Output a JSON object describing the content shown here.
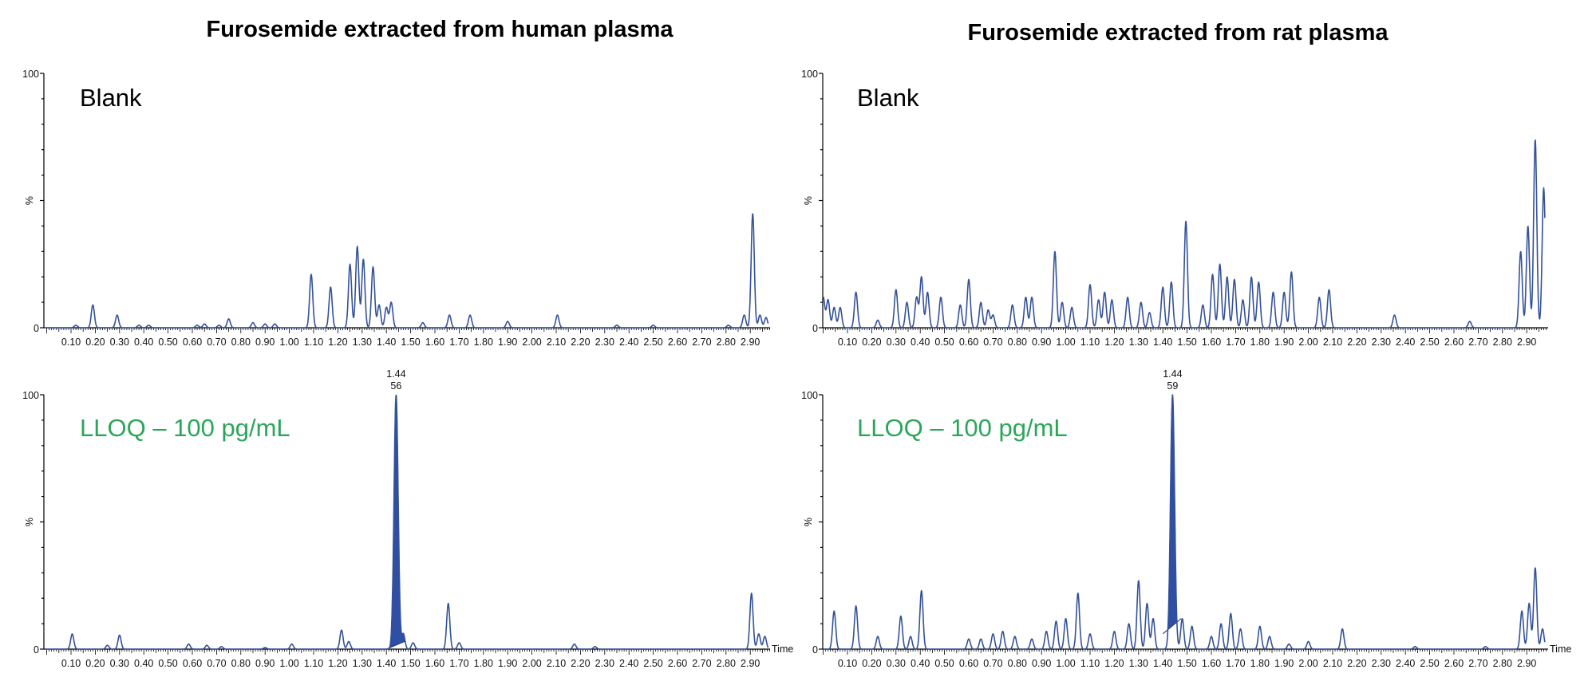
{
  "titles": {
    "left": "Furosemide extracted from human plasma",
    "right": "Furosemide extracted from rat plasma"
  },
  "axis_text": {
    "y_label": "%",
    "y_min": "0",
    "y_max": "100",
    "x_label": "Time"
  },
  "colors": {
    "trace": "#34519a",
    "peak_fill": "#2e4fa3",
    "lloq_label": "#2aa65a"
  },
  "chart_data": [
    {
      "type": "line",
      "panel": "human-blank",
      "label": "Blank",
      "xlabel": "Time",
      "ylabel": "%",
      "ylim": [
        0,
        100
      ],
      "xlim": [
        0.0,
        2.98
      ],
      "x_ticks": [
        "0.10",
        "0.20",
        "0.30",
        "0.40",
        "0.50",
        "0.60",
        "0.70",
        "0.80",
        "0.90",
        "1.00",
        "1.10",
        "1.20",
        "1.30",
        "1.40",
        "1.50",
        "1.60",
        "1.70",
        "1.80",
        "1.90",
        "2.00",
        "2.10",
        "2.20",
        "2.30",
        "2.40",
        "2.50",
        "2.60",
        "2.70",
        "2.80",
        "2.90"
      ],
      "peaks": [
        [
          0.12,
          1
        ],
        [
          0.19,
          9
        ],
        [
          0.29,
          5
        ],
        [
          0.38,
          1
        ],
        [
          0.42,
          1
        ],
        [
          0.62,
          1
        ],
        [
          0.65,
          1.5
        ],
        [
          0.71,
          1
        ],
        [
          0.75,
          3.5
        ],
        [
          0.85,
          2
        ],
        [
          0.9,
          1.5
        ],
        [
          0.94,
          1.5
        ],
        [
          1.09,
          21
        ],
        [
          1.17,
          16
        ],
        [
          1.25,
          25
        ],
        [
          1.28,
          32
        ],
        [
          1.305,
          27
        ],
        [
          1.345,
          24
        ],
        [
          1.37,
          9
        ],
        [
          1.4,
          8
        ],
        [
          1.42,
          10
        ],
        [
          1.55,
          2
        ],
        [
          1.66,
          5
        ],
        [
          1.745,
          5
        ],
        [
          1.9,
          2.5
        ],
        [
          2.105,
          5
        ],
        [
          2.35,
          1
        ],
        [
          2.5,
          1
        ],
        [
          2.81,
          1
        ],
        [
          2.875,
          5
        ],
        [
          2.91,
          45
        ],
        [
          2.94,
          5
        ],
        [
          2.965,
          4
        ]
      ]
    },
    {
      "type": "line",
      "panel": "human-lloq",
      "label": "LLOQ – 100 pg/mL",
      "xlabel": "Time",
      "ylabel": "%",
      "ylim": [
        0,
        100
      ],
      "xlim": [
        0.0,
        2.98
      ],
      "x_ticks": [
        "0.10",
        "0.20",
        "0.30",
        "0.40",
        "0.50",
        "0.60",
        "0.70",
        "0.80",
        "0.90",
        "1.00",
        "1.10",
        "1.20",
        "1.30",
        "1.40",
        "1.50",
        "1.60",
        "1.70",
        "1.80",
        "1.90",
        "2.00",
        "2.10",
        "2.20",
        "2.30",
        "2.40",
        "2.50",
        "2.60",
        "2.70",
        "2.80",
        "2.90"
      ],
      "peaks": [
        [
          0.105,
          6
        ],
        [
          0.25,
          1.5
        ],
        [
          0.3,
          5.5
        ],
        [
          0.585,
          2
        ],
        [
          0.66,
          1.5
        ],
        [
          0.72,
          1
        ],
        [
          0.9,
          0.6
        ],
        [
          1.01,
          2
        ],
        [
          1.215,
          7.5
        ],
        [
          1.245,
          3
        ],
        [
          1.44,
          100
        ],
        [
          1.47,
          6
        ],
        [
          1.51,
          2.5
        ],
        [
          1.655,
          18
        ],
        [
          1.7,
          2.5
        ],
        [
          2.175,
          2
        ],
        [
          2.26,
          1
        ],
        [
          2.905,
          22
        ],
        [
          2.935,
          6
        ],
        [
          2.96,
          5
        ]
      ],
      "peak_annotation": {
        "rt": "1.44",
        "area": "56"
      },
      "integrated_peak": {
        "start": 1.4,
        "end": 1.475,
        "baseline": [
          0,
          3
        ]
      }
    },
    {
      "type": "line",
      "panel": "rat-blank",
      "label": "Blank",
      "xlabel": "Time",
      "ylabel": "%",
      "ylim": [
        0,
        100
      ],
      "xlim": [
        0.0,
        2.98
      ],
      "x_ticks": [
        "0.10",
        "0.20",
        "0.30",
        "0.40",
        "0.50",
        "0.60",
        "0.70",
        "0.80",
        "0.90",
        "1.00",
        "1.10",
        "1.20",
        "1.30",
        "1.40",
        "1.50",
        "1.60",
        "1.70",
        "1.80",
        "1.90",
        "2.00",
        "2.10",
        "2.20",
        "2.30",
        "2.40",
        "2.50",
        "2.60",
        "2.70",
        "2.80",
        "2.90"
      ],
      "peaks": [
        [
          0.0,
          12
        ],
        [
          0.02,
          11
        ],
        [
          0.045,
          8
        ],
        [
          0.07,
          8
        ],
        [
          0.135,
          14
        ],
        [
          0.225,
          3
        ],
        [
          0.3,
          15
        ],
        [
          0.345,
          10
        ],
        [
          0.385,
          12
        ],
        [
          0.405,
          20
        ],
        [
          0.43,
          14
        ],
        [
          0.485,
          12
        ],
        [
          0.565,
          9
        ],
        [
          0.6,
          19
        ],
        [
          0.65,
          10
        ],
        [
          0.68,
          7
        ],
        [
          0.7,
          5
        ],
        [
          0.78,
          9
        ],
        [
          0.835,
          12
        ],
        [
          0.86,
          12
        ],
        [
          0.955,
          30
        ],
        [
          0.985,
          10
        ],
        [
          1.025,
          8
        ],
        [
          1.1,
          17
        ],
        [
          1.135,
          11
        ],
        [
          1.16,
          14
        ],
        [
          1.19,
          11
        ],
        [
          1.255,
          12
        ],
        [
          1.31,
          10
        ],
        [
          1.345,
          6
        ],
        [
          1.4,
          16
        ],
        [
          1.435,
          18
        ],
        [
          1.495,
          42
        ],
        [
          1.565,
          9
        ],
        [
          1.605,
          21
        ],
        [
          1.635,
          25
        ],
        [
          1.665,
          20
        ],
        [
          1.695,
          19
        ],
        [
          1.73,
          11
        ],
        [
          1.765,
          20
        ],
        [
          1.795,
          18
        ],
        [
          1.855,
          14
        ],
        [
          1.9,
          14
        ],
        [
          1.93,
          22
        ],
        [
          2.045,
          12
        ],
        [
          2.085,
          15
        ],
        [
          2.355,
          5
        ],
        [
          2.665,
          2.5
        ],
        [
          2.875,
          30
        ],
        [
          2.905,
          40
        ],
        [
          2.935,
          74
        ],
        [
          2.97,
          55
        ]
      ]
    },
    {
      "type": "line",
      "panel": "rat-lloq",
      "label": "LLOQ – 100 pg/mL",
      "xlabel": "Time",
      "ylabel": "%",
      "ylim": [
        0,
        100
      ],
      "xlim": [
        0.0,
        2.98
      ],
      "x_ticks": [
        "0.10",
        "0.20",
        "0.30",
        "0.40",
        "0.50",
        "0.60",
        "0.70",
        "0.80",
        "0.90",
        "1.00",
        "1.10",
        "1.20",
        "1.30",
        "1.40",
        "1.50",
        "1.60",
        "1.70",
        "1.80",
        "1.90",
        "2.00",
        "2.10",
        "2.20",
        "2.30",
        "2.40",
        "2.50",
        "2.60",
        "2.70",
        "2.80",
        "2.90"
      ],
      "peaks": [
        [
          0.045,
          15
        ],
        [
          0.135,
          17
        ],
        [
          0.225,
          5
        ],
        [
          0.32,
          13
        ],
        [
          0.36,
          5
        ],
        [
          0.405,
          23
        ],
        [
          0.6,
          4
        ],
        [
          0.65,
          4
        ],
        [
          0.7,
          6
        ],
        [
          0.74,
          7
        ],
        [
          0.79,
          5
        ],
        [
          0.86,
          4
        ],
        [
          0.92,
          7
        ],
        [
          0.96,
          11
        ],
        [
          1.0,
          12
        ],
        [
          1.05,
          22
        ],
        [
          1.1,
          6
        ],
        [
          1.2,
          7
        ],
        [
          1.26,
          10
        ],
        [
          1.3,
          27
        ],
        [
          1.335,
          18
        ],
        [
          1.36,
          12
        ],
        [
          1.44,
          100
        ],
        [
          1.48,
          12
        ],
        [
          1.52,
          9
        ],
        [
          1.6,
          5
        ],
        [
          1.64,
          10
        ],
        [
          1.68,
          14
        ],
        [
          1.72,
          8
        ],
        [
          1.8,
          9
        ],
        [
          1.84,
          5
        ],
        [
          1.92,
          2
        ],
        [
          2.0,
          3
        ],
        [
          2.14,
          8
        ],
        [
          2.44,
          1
        ],
        [
          2.73,
          1
        ],
        [
          2.88,
          15
        ],
        [
          2.91,
          18
        ],
        [
          2.935,
          32
        ],
        [
          2.965,
          8
        ]
      ],
      "peak_annotation": {
        "rt": "1.44",
        "area": "59"
      },
      "integrated_peak": {
        "start": 1.4,
        "end": 1.475,
        "baseline": [
          6,
          12
        ]
      }
    }
  ]
}
